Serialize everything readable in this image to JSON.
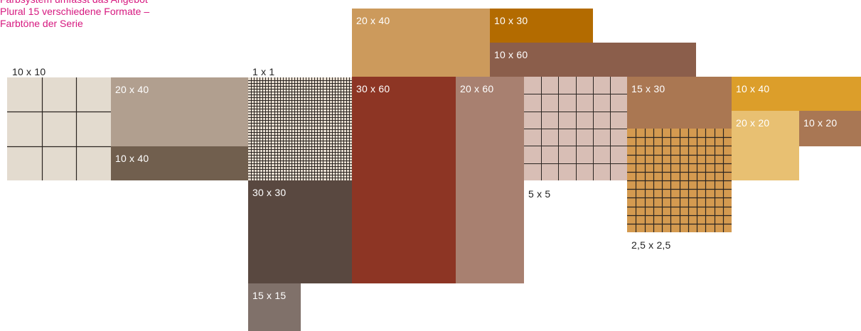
{
  "intro": {
    "lines": [
      "Farbsystem umfasst das Angebot",
      "Plural 15 verschiedene Formate –",
      "Farbtöne der Serie"
    ]
  },
  "colors": {
    "intro_text": "#d6187f",
    "light_label": "#ffffff",
    "dark_label": "#222222",
    "grid_line": "#2b2521"
  },
  "formats": {
    "f10x10": "10 x 10",
    "f20x40_grey": "20 x 40",
    "f10x40_brown": "10 x 40",
    "f1x1": "1 x 1",
    "f30x30": "30 x 30",
    "f15x15": "15 x 15",
    "f20x40_top": "20 x 40",
    "f10x30": "10 x 30",
    "f10x60": "10 x 60",
    "f30x60": "30 x 60",
    "f20x60": "20 x 60",
    "f5x5": "5 x 5",
    "f15x30": "15 x 30",
    "f2_5x2_5": "2,5 x 2,5",
    "f10x40_gold": "10 x 40",
    "f20x20": "20 x 20",
    "f10x20": "10 x 20"
  }
}
